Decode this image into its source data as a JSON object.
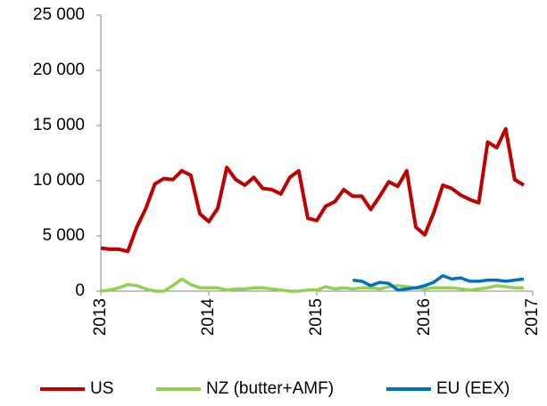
{
  "chart_data": {
    "type": "line",
    "x": [
      2013,
      2013.083,
      2013.167,
      2013.25,
      2013.333,
      2013.417,
      2013.5,
      2013.583,
      2013.667,
      2013.75,
      2013.833,
      2013.917,
      2014,
      2014.083,
      2014.167,
      2014.25,
      2014.333,
      2014.417,
      2014.5,
      2014.583,
      2014.667,
      2014.75,
      2014.833,
      2014.917,
      2015,
      2015.083,
      2015.167,
      2015.25,
      2015.333,
      2015.417,
      2015.5,
      2015.583,
      2015.667,
      2015.75,
      2015.833,
      2015.917,
      2016,
      2016.083,
      2016.167,
      2016.25,
      2016.333,
      2016.417,
      2016.5,
      2016.583,
      2016.667,
      2016.75,
      2016.833,
      2016.917
    ],
    "series": [
      {
        "name": "US",
        "color": "#c00000",
        "values": [
          3900,
          3800,
          3800,
          3600,
          5800,
          7500,
          9700,
          10200,
          10100,
          10900,
          10500,
          7000,
          6300,
          7500,
          11200,
          10100,
          9600,
          10300,
          9300,
          9200,
          8800,
          10300,
          10900,
          6600,
          6400,
          7700,
          8100,
          9200,
          8600,
          8600,
          7400,
          8600,
          9900,
          9500,
          10900,
          5800,
          5100,
          7100,
          9600,
          9300,
          8700,
          8300,
          8000,
          13500,
          13000,
          14700,
          10100,
          9600
        ]
      },
      {
        "name": "NZ (butter+AMF)",
        "color": "#92d050",
        "values": [
          0,
          100,
          300,
          600,
          500,
          200,
          0,
          0,
          500,
          1100,
          600,
          300,
          300,
          300,
          100,
          200,
          200,
          300,
          300,
          200,
          100,
          0,
          0,
          100,
          100,
          400,
          200,
          300,
          200,
          300,
          300,
          200,
          400,
          500,
          400,
          300,
          200,
          300,
          300,
          300,
          200,
          100,
          200,
          300,
          500,
          400,
          300,
          300
        ]
      },
      {
        "name": "EU (EEX)",
        "color": "#0070c0",
        "values": [
          null,
          null,
          null,
          null,
          null,
          null,
          null,
          null,
          null,
          null,
          null,
          null,
          null,
          null,
          null,
          null,
          null,
          null,
          null,
          null,
          null,
          null,
          null,
          null,
          null,
          null,
          null,
          null,
          1000,
          900,
          500,
          800,
          700,
          100,
          200,
          300,
          500,
          800,
          1400,
          1100,
          1200,
          900,
          900,
          1000,
          1000,
          900,
          1000,
          1100
        ]
      }
    ],
    "xlim": [
      2013,
      2017
    ],
    "xticks": [
      2013,
      2014,
      2015,
      2016,
      2017
    ],
    "ylim": [
      0,
      25000
    ],
    "yticks": [
      0,
      {
        "value": 5000,
        "label": "5 000"
      },
      {
        "value": 10000,
        "label": "10 000"
      },
      {
        "value": 15000,
        "label": "15 000"
      },
      {
        "value": 20000,
        "label": "20 000"
      },
      {
        "value": 25000,
        "label": "25 000"
      }
    ],
    "grid": false,
    "legend": "bottom"
  }
}
